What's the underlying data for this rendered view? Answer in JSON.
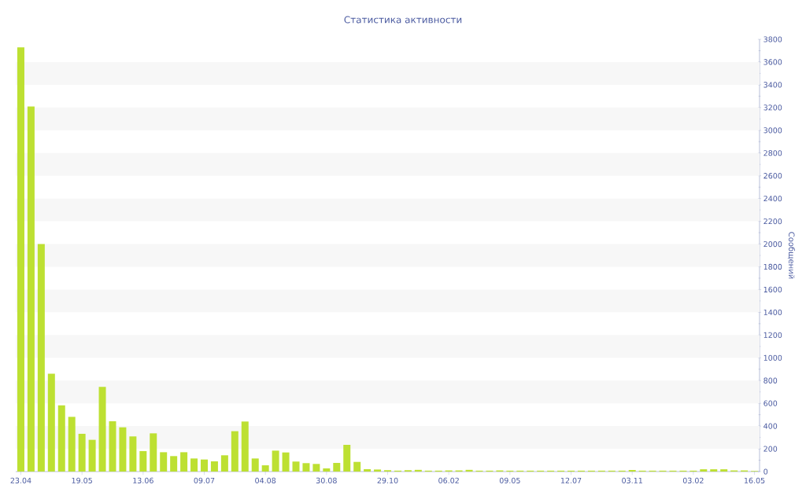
{
  "chart_data": {
    "type": "bar",
    "title": "Статистика активности",
    "ylabel": "Сообщений",
    "categories": [
      "23.04",
      null,
      null,
      null,
      null,
      null,
      "19.05",
      null,
      null,
      null,
      null,
      null,
      "13.06",
      null,
      null,
      null,
      null,
      null,
      "09.07",
      null,
      null,
      null,
      null,
      null,
      "04.08",
      null,
      null,
      null,
      null,
      null,
      "30.08",
      null,
      null,
      null,
      null,
      null,
      "29.10",
      null,
      null,
      null,
      null,
      null,
      "06.02",
      null,
      null,
      null,
      null,
      null,
      "09.05",
      null,
      null,
      null,
      null,
      null,
      "12.07",
      null,
      null,
      null,
      null,
      null,
      "03.11",
      null,
      null,
      null,
      null,
      null,
      "03.02",
      null,
      null,
      null,
      null,
      null,
      "16.05"
    ],
    "values": [
      3730,
      3210,
      2000,
      860,
      582,
      481,
      332,
      279,
      744,
      442,
      389,
      309,
      180,
      336,
      170,
      136,
      170,
      115,
      106,
      90,
      143,
      355,
      440,
      115,
      55,
      184,
      168,
      88,
      74,
      67,
      28,
      76,
      235,
      85,
      21,
      18,
      12,
      8,
      12,
      15,
      8,
      8,
      10,
      10,
      15,
      8,
      8,
      10,
      8,
      8,
      8,
      8,
      8,
      8,
      8,
      8,
      8,
      8,
      8,
      8,
      14,
      8,
      8,
      8,
      8,
      8,
      8,
      20,
      20,
      20,
      10,
      10,
      5
    ],
    "color": "#bde032",
    "ylim": [
      0,
      3800
    ],
    "yticks": [
      0,
      200,
      400,
      600,
      800,
      1000,
      1200,
      1400,
      1600,
      1800,
      2000,
      2200,
      2400,
      2600,
      2800,
      3000,
      3200,
      3400,
      3600,
      3800
    ],
    "bands": [
      {
        "axis": "y",
        "from": 200,
        "to": 400,
        "color": "#f7f7f7"
      },
      {
        "axis": "y",
        "from": 600,
        "to": 800,
        "color": "#f7f7f7"
      },
      {
        "axis": "y",
        "from": 1000,
        "to": 1200,
        "color": "#f7f7f7"
      },
      {
        "axis": "y",
        "from": 1400,
        "to": 1600,
        "color": "#f7f7f7"
      },
      {
        "axis": "y",
        "from": 1800,
        "to": 2000,
        "color": "#f7f7f7"
      },
      {
        "axis": "y",
        "from": 2200,
        "to": 2400,
        "color": "#f7f7f7"
      },
      {
        "axis": "y",
        "from": 2600,
        "to": 2800,
        "color": "#f7f7f7"
      },
      {
        "axis": "y",
        "from": 3000,
        "to": 3200,
        "color": "#f7f7f7"
      },
      {
        "axis": "y",
        "from": 3400,
        "to": 3600,
        "color": "#f7f7f7"
      }
    ]
  }
}
